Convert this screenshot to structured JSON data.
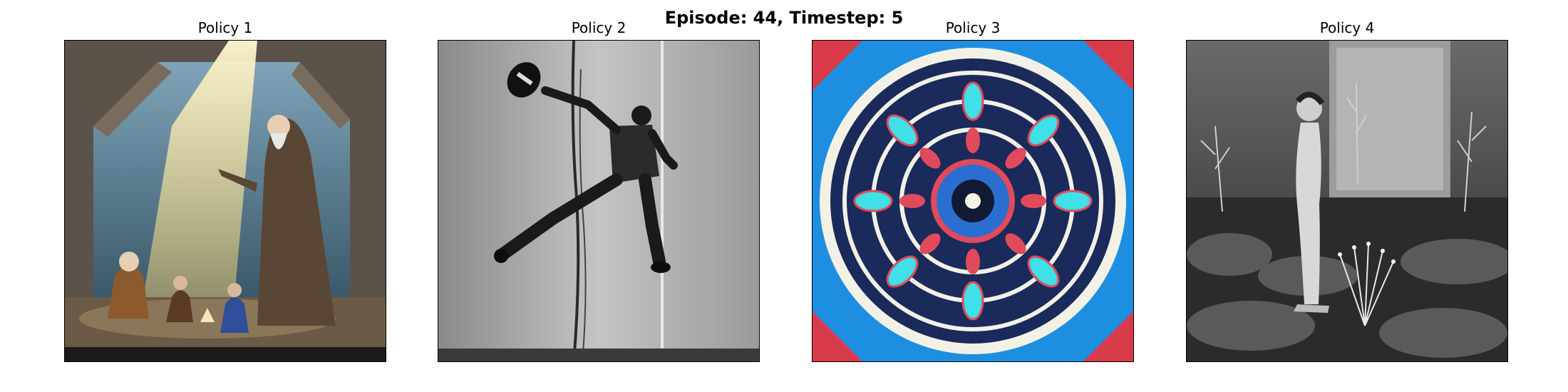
{
  "figure": {
    "suptitle": "Episode: 44, Timestep: 5"
  },
  "panels": [
    {
      "title": "Policy 1",
      "image_name": "wizard-light-beam-image"
    },
    {
      "title": "Policy 2",
      "image_name": "pole-climber-image"
    },
    {
      "title": "Policy 3",
      "image_name": "mandala-rose-window-image"
    },
    {
      "title": "Policy 4",
      "image_name": "garden-figure-photo-image"
    }
  ],
  "colors": {
    "background": "#ffffff",
    "frame": "#000000",
    "mandala_blue": "#1e8fe0",
    "mandala_cyan": "#3fe0e8",
    "mandala_red": "#e04a5a"
  }
}
